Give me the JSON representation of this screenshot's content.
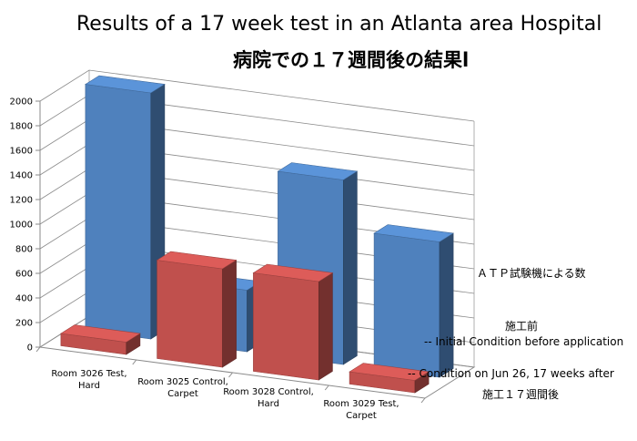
{
  "chart_data": {
    "type": "bar",
    "title": "Results of a 17 week test in an Atlanta area Hospital",
    "subtitle": "病院での１７週間後の結果l",
    "categories": [
      "Room 3026 Test, Hard",
      "Room 3025 Control, Carpet",
      "Room 3028 Control, Hard",
      "Room 3029 Test, Carpet"
    ],
    "series": [
      {
        "name": "-- Initial Condition before application",
        "name_ja": "施工前",
        "color": "#4f81bd",
        "values": [
          2000,
          500,
          1500,
          1100
        ]
      },
      {
        "name": "-- Condition  on Jun 26, 17 weeks after",
        "name_ja": "施工１７週間後",
        "color": "#c0504d",
        "values": [
          100,
          800,
          800,
          100
        ]
      }
    ],
    "zlabel": "ＡＴＰ試験機による数",
    "ylim": [
      0,
      2000
    ],
    "yticks": [
      0,
      200,
      400,
      600,
      800,
      1000,
      1200,
      1400,
      1600,
      1800,
      2000
    ],
    "grid": true
  }
}
